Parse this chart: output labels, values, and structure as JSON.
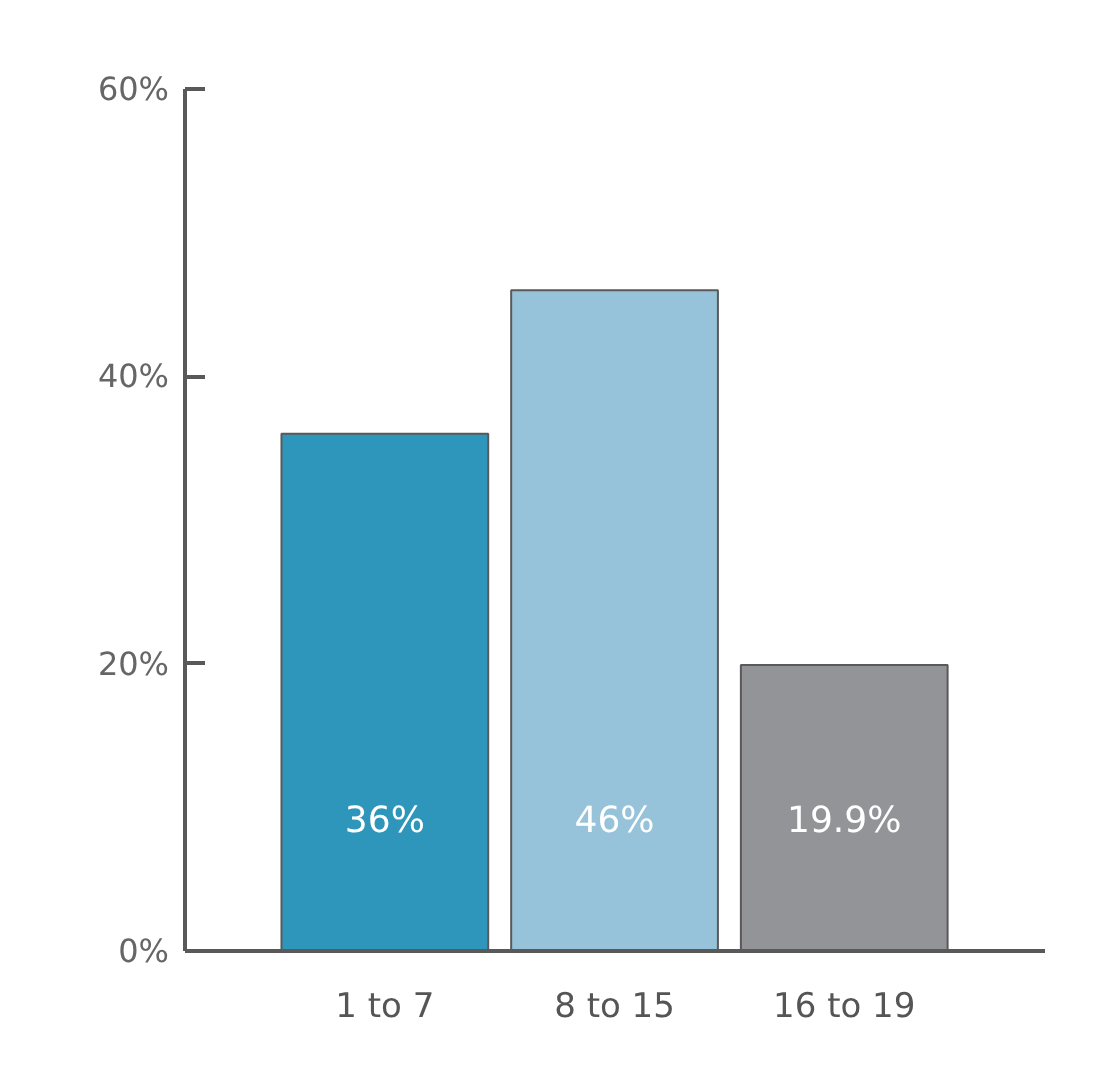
{
  "chart_data": {
    "type": "bar",
    "categories": [
      "1 to 7",
      "8 to 15",
      "16 to 19"
    ],
    "values": [
      36,
      46,
      19.9
    ],
    "colors": [
      "#2e96bb",
      "#96c3da",
      "#939497"
    ],
    "value_labels": [
      "36%",
      "46%",
      "19.9%"
    ],
    "ylim": [
      0,
      60
    ],
    "yticks": [
      {
        "value": 0,
        "label": "0%"
      },
      {
        "value": 20,
        "label": "20%"
      },
      {
        "value": 40,
        "label": "40%"
      },
      {
        "value": 60,
        "label": "60%"
      }
    ]
  }
}
